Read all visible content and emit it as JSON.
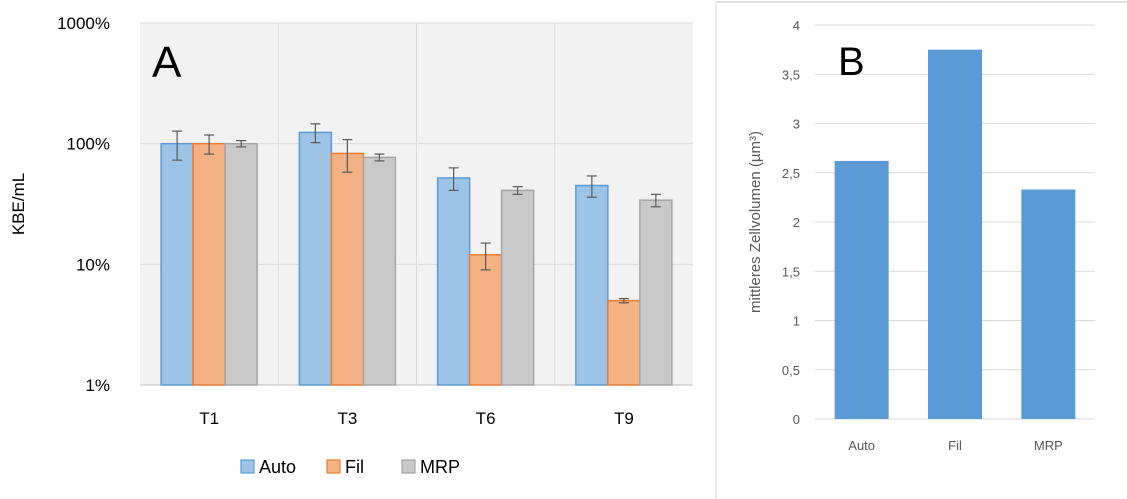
{
  "colors": {
    "auto": "#9dc3e6",
    "auto_dark": "#5b9bd5",
    "fil": "#f4b183",
    "fil_dark": "#ed7d31",
    "mrp": "#c9c9c9",
    "mrp_dark": "#a5a5a5",
    "b_bar": "#5b9bd5",
    "grid": "#d9d9d9",
    "axis_text": "#000000",
    "b_text": "#595959"
  },
  "chart_data": [
    {
      "type": "bar",
      "panel_label": "A",
      "ylabel": "KBE/mL",
      "yscale": "log",
      "ylim": [
        0.01,
        10
      ],
      "yticks": [
        0.01,
        0.1,
        1,
        10
      ],
      "ytick_labels": [
        "1%",
        "10%",
        "100%",
        "1000%"
      ],
      "categories": [
        "T1",
        "T3",
        "T6",
        "T9"
      ],
      "legend_position": "bottom",
      "series": [
        {
          "name": "Auto",
          "values": [
            1.0,
            1.24,
            0.52,
            0.45
          ],
          "errors": [
            0.27,
            0.22,
            0.11,
            0.09
          ]
        },
        {
          "name": "Fil",
          "values": [
            1.0,
            0.83,
            0.12,
            0.05
          ],
          "errors": [
            0.18,
            0.25,
            0.03,
            0.002
          ]
        },
        {
          "name": "MRP",
          "values": [
            1.0,
            0.77,
            0.41,
            0.34
          ],
          "errors": [
            0.06,
            0.05,
            0.03,
            0.04
          ]
        }
      ]
    },
    {
      "type": "bar",
      "panel_label": "B",
      "ylabel": "mittleres Zellvolumen (µm³)",
      "ylim": [
        0,
        4
      ],
      "yticks": [
        0,
        0.5,
        1,
        1.5,
        2,
        2.5,
        3,
        3.5,
        4
      ],
      "ytick_labels": [
        "0",
        "0,5",
        "1",
        "1,5",
        "2",
        "2,5",
        "3",
        "3,5",
        "4"
      ],
      "categories": [
        "Auto",
        "Fil",
        "MRP"
      ],
      "values": [
        2.62,
        3.75,
        2.33
      ]
    }
  ]
}
